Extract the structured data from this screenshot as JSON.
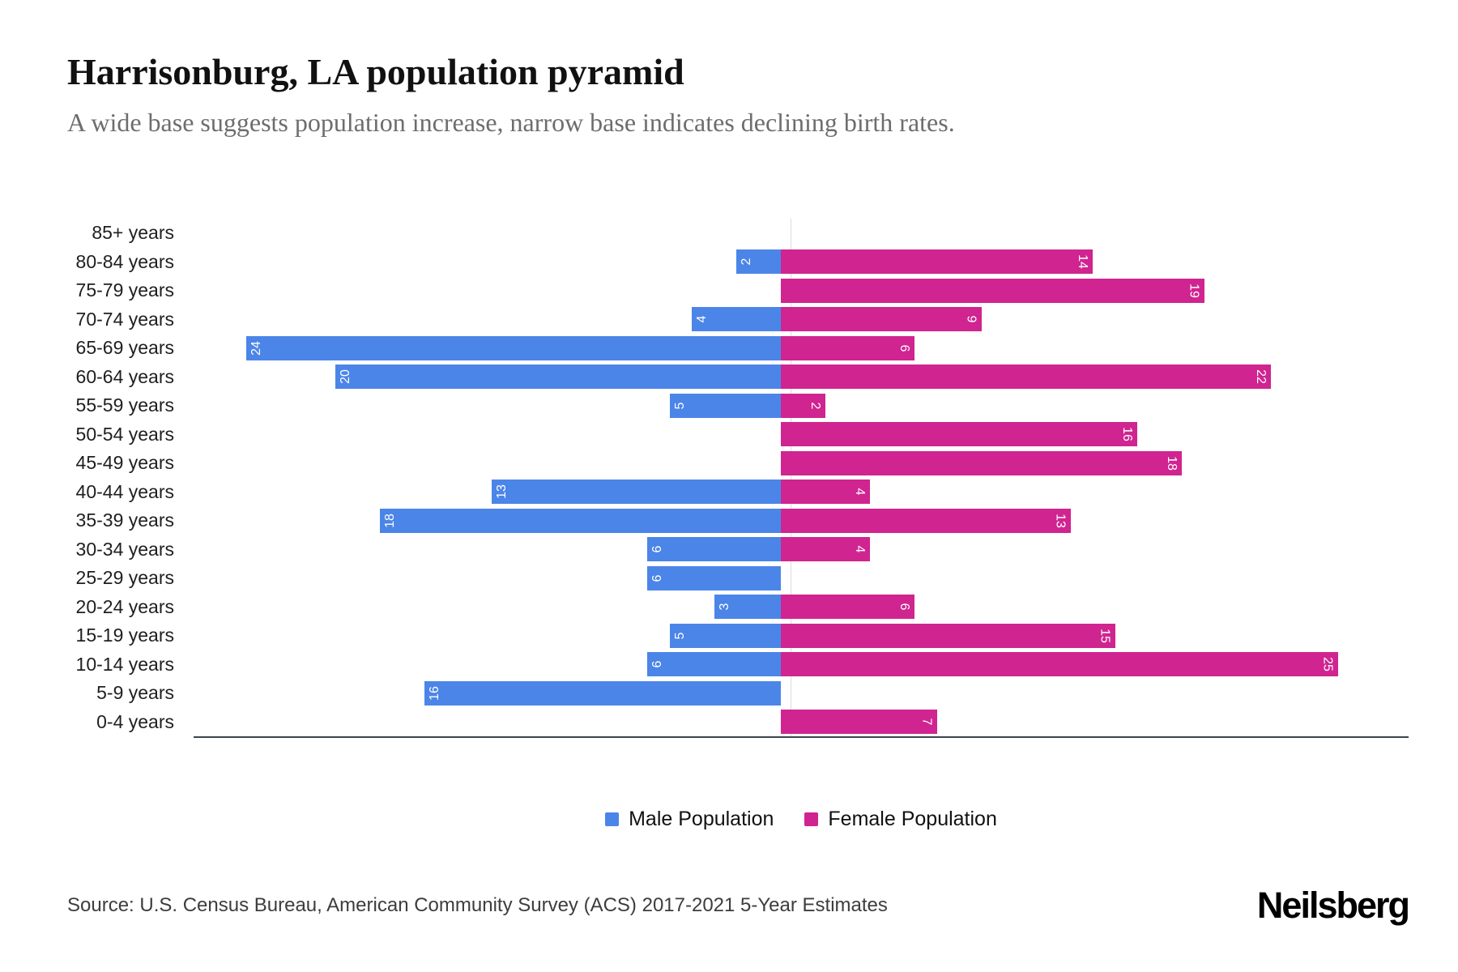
{
  "header": {
    "title": "Harrisonburg, LA population pyramid",
    "subtitle": "A wide base suggests population increase, narrow base indicates declining birth rates."
  },
  "chart_data": {
    "type": "bar",
    "variant": "population-pyramid",
    "categories": [
      "85+ years",
      "80-84 years",
      "75-79 years",
      "70-74 years",
      "65-69 years",
      "60-64 years",
      "55-59 years",
      "50-54 years",
      "45-49 years",
      "40-44 years",
      "35-39 years",
      "30-34 years",
      "25-29 years",
      "20-24 years",
      "15-19 years",
      "10-14 years",
      "5-9 years",
      "0-4 years"
    ],
    "series": [
      {
        "name": "Male Population",
        "color": "#4c85e8",
        "values": [
          0,
          2,
          0,
          4,
          24,
          20,
          5,
          0,
          0,
          13,
          18,
          6,
          6,
          3,
          5,
          6,
          16,
          0
        ]
      },
      {
        "name": "Female Population",
        "color": "#d02490",
        "values": [
          0,
          14,
          19,
          9,
          6,
          22,
          2,
          16,
          18,
          4,
          13,
          4,
          0,
          6,
          15,
          25,
          0,
          7
        ]
      }
    ],
    "xlim": [
      -25,
      25
    ],
    "value_labels": "inside outer end, rotated 90deg, white",
    "grid": "center vertical axis line only, dark bottom axis line",
    "legend_position": "bottom-center"
  },
  "legend": {
    "items": [
      {
        "label": "Male Population",
        "color": "#4c85e8"
      },
      {
        "label": "Female Population",
        "color": "#d02490"
      }
    ]
  },
  "footer": {
    "source": "Source: U.S. Census Bureau, American Community Survey (ACS) 2017-2021 5-Year Estimates",
    "brand": "Neilsberg"
  }
}
